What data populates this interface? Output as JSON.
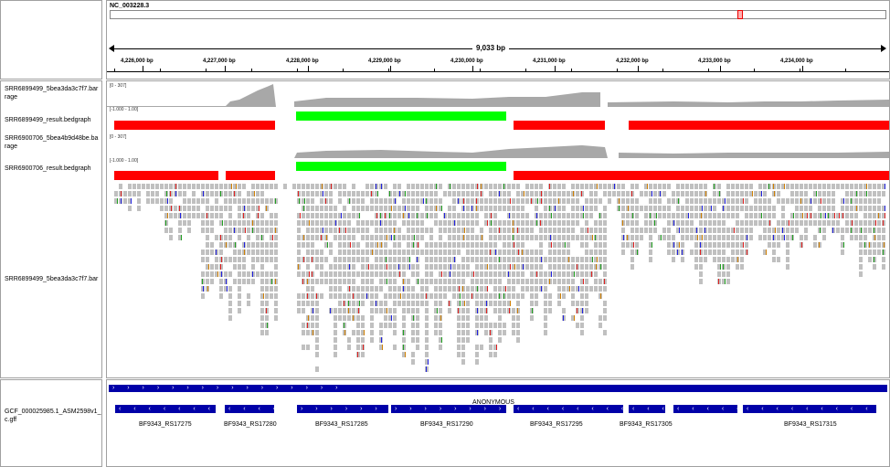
{
  "locus": {
    "chromosome": "NC_003228.3",
    "span": "9,033 bp"
  },
  "ruler": {
    "ticks": [
      "4,226,000 bp",
      "4,227,000 bp",
      "4,228,000 bp",
      "4,229,000 bp",
      "4,230,000 bp",
      "4,231,000 bp",
      "4,232,000 bp",
      "4,233,000 bp",
      "4,234,000 bp"
    ]
  },
  "tracks": {
    "cov1": {
      "name": "SRR6899499_5bea3da3c7f7.bar rage",
      "range": "[0 - 307]"
    },
    "bed1": {
      "name": "SRR6899499_result.bedgraph",
      "range": "[-1.000 - 1.00]"
    },
    "cov2": {
      "name": "SRR6900706_5bea4b9d48be.ba rage",
      "range": "[0 - 307]"
    },
    "bed2": {
      "name": "SRR6900706_result.bedgraph",
      "range": "[-1.000 - 1.00]"
    },
    "reads": {
      "name": "SRR6899499_5bea3da3c7f7.bar"
    },
    "annot": {
      "name": "GCF_000025985.1_ASM2598v1_ c.gff"
    }
  },
  "annotation": {
    "label": "ANONYMOUS",
    "genes": [
      "BF9343_RS17275",
      "BF9343_RS17280",
      "BF9343_RS17285",
      "BF9343_RS17290",
      "BF9343_RS17295",
      "BF9343_RS17305",
      "BF9343_RS17315"
    ],
    "strand_forward": "› › › › › › › › › › › › › › › ›",
    "strand_reverse": "‹ ‹ ‹ ‹ ‹ ‹ ‹ ‹ ‹ ‹ ‹ ‹ ‹ ‹"
  },
  "colors": {
    "positive": "#00ff00",
    "negative": "#ff0000",
    "gene": "#0000a8",
    "coverage": "#a8a8a8",
    "read": "#c0c0c0"
  }
}
